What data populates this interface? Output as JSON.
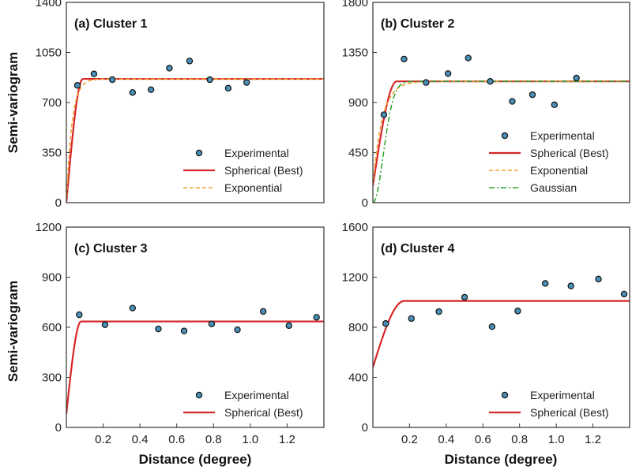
{
  "figure": {
    "xlabel": "Distance (degree)",
    "ylabel": "Semi-variogram"
  },
  "colors": {
    "experimental_fill": "#4a90b8",
    "spherical": "#d62728",
    "exponential": "#f0a030",
    "gaussian": "#2ca02c",
    "axis": "#333333"
  },
  "chart_data": [
    {
      "type": "scatter",
      "title": "(a) Cluster 1",
      "xlabel": "",
      "ylabel": "Semi-variogram",
      "xlim": [
        0,
        1.4
      ],
      "ylim": [
        0,
        1400
      ],
      "xticks": [],
      "yticks": [
        0,
        350,
        700,
        1050,
        1400
      ],
      "legend": [
        "Experimental",
        "Spherical (Best)",
        "Exponential"
      ],
      "experimental": {
        "x": [
          0.06,
          0.15,
          0.25,
          0.36,
          0.46,
          0.56,
          0.67,
          0.78,
          0.88,
          0.98
        ],
        "y": [
          820,
          900,
          860,
          770,
          790,
          940,
          990,
          860,
          800,
          840
        ]
      },
      "models": [
        {
          "name": "Spherical (Best)",
          "kind": "spherical",
          "nugget": 0,
          "sill": 865,
          "range": 0.09
        },
        {
          "name": "Exponential",
          "kind": "exponential",
          "nugget": 0,
          "sill": 865,
          "range": 0.03
        }
      ]
    },
    {
      "type": "scatter",
      "title": "(b) Cluster 2",
      "xlabel": "",
      "ylabel": "",
      "xlim": [
        0,
        1.4
      ],
      "ylim": [
        0,
        1800
      ],
      "xticks": [],
      "yticks": [
        0,
        450,
        900,
        1350,
        1800
      ],
      "legend": [
        "Experimental",
        "Spherical (Best)",
        "Exponential",
        "Gaussian"
      ],
      "experimental": {
        "x": [
          0.06,
          0.17,
          0.29,
          0.41,
          0.52,
          0.64,
          0.76,
          0.87,
          0.99,
          1.11
        ],
        "y": [
          790,
          1290,
          1080,
          1160,
          1300,
          1090,
          910,
          970,
          880,
          1120
        ]
      },
      "models": [
        {
          "name": "Spherical (Best)",
          "kind": "spherical",
          "nugget": 150,
          "sill": 1090,
          "range": 0.13
        },
        {
          "name": "Exponential",
          "kind": "exponential",
          "nugget": 150,
          "sill": 1090,
          "range": 0.05
        },
        {
          "name": "Gaussian",
          "kind": "gaussian",
          "nugget": 0,
          "sill": 1090,
          "range": 0.08
        }
      ]
    },
    {
      "type": "scatter",
      "title": "(c) Cluster 3",
      "xlabel": "Distance (degree)",
      "ylabel": "Semi-variogram",
      "xlim": [
        0,
        1.4
      ],
      "ylim": [
        0,
        1200
      ],
      "xticks": [
        0.2,
        0.4,
        0.6,
        0.8,
        1.0,
        1.2
      ],
      "xtick_labels": [
        "0.2",
        "0.4",
        "0.6",
        "0.8",
        "1.0",
        "1.2"
      ],
      "yticks": [
        0,
        300,
        600,
        900,
        1200
      ],
      "legend": [
        "Experimental",
        "Spherical (Best)"
      ],
      "experimental": {
        "x": [
          0.07,
          0.21,
          0.36,
          0.5,
          0.64,
          0.79,
          0.93,
          1.07,
          1.21,
          1.36
        ],
        "y": [
          675,
          615,
          715,
          590,
          578,
          620,
          585,
          695,
          610,
          660
        ]
      },
      "models": [
        {
          "name": "Spherical (Best)",
          "kind": "spherical",
          "nugget": 80,
          "sill": 635,
          "range": 0.08
        }
      ]
    },
    {
      "type": "scatter",
      "title": "(d) Cluster 4",
      "xlabel": "Distance (degree)",
      "ylabel": "",
      "xlim": [
        0,
        1.4
      ],
      "ylim": [
        0,
        1600
      ],
      "xticks": [
        0.2,
        0.4,
        0.6,
        0.8,
        1.0,
        1.2
      ],
      "xtick_labels": [
        "0.2",
        "0.4",
        "0.6",
        "0.8",
        "1.0",
        "1.2"
      ],
      "yticks": [
        0,
        400,
        800,
        1200,
        1600
      ],
      "legend": [
        "Experimental",
        "Spherical (Best)"
      ],
      "experimental": {
        "x": [
          0.07,
          0.21,
          0.36,
          0.5,
          0.65,
          0.79,
          0.94,
          1.08,
          1.23,
          1.37
        ],
        "y": [
          830,
          870,
          925,
          1040,
          805,
          930,
          1150,
          1130,
          1185,
          1065
        ]
      },
      "models": [
        {
          "name": "Spherical (Best)",
          "kind": "spherical",
          "nugget": 480,
          "sill": 1010,
          "range": 0.17
        }
      ]
    }
  ]
}
